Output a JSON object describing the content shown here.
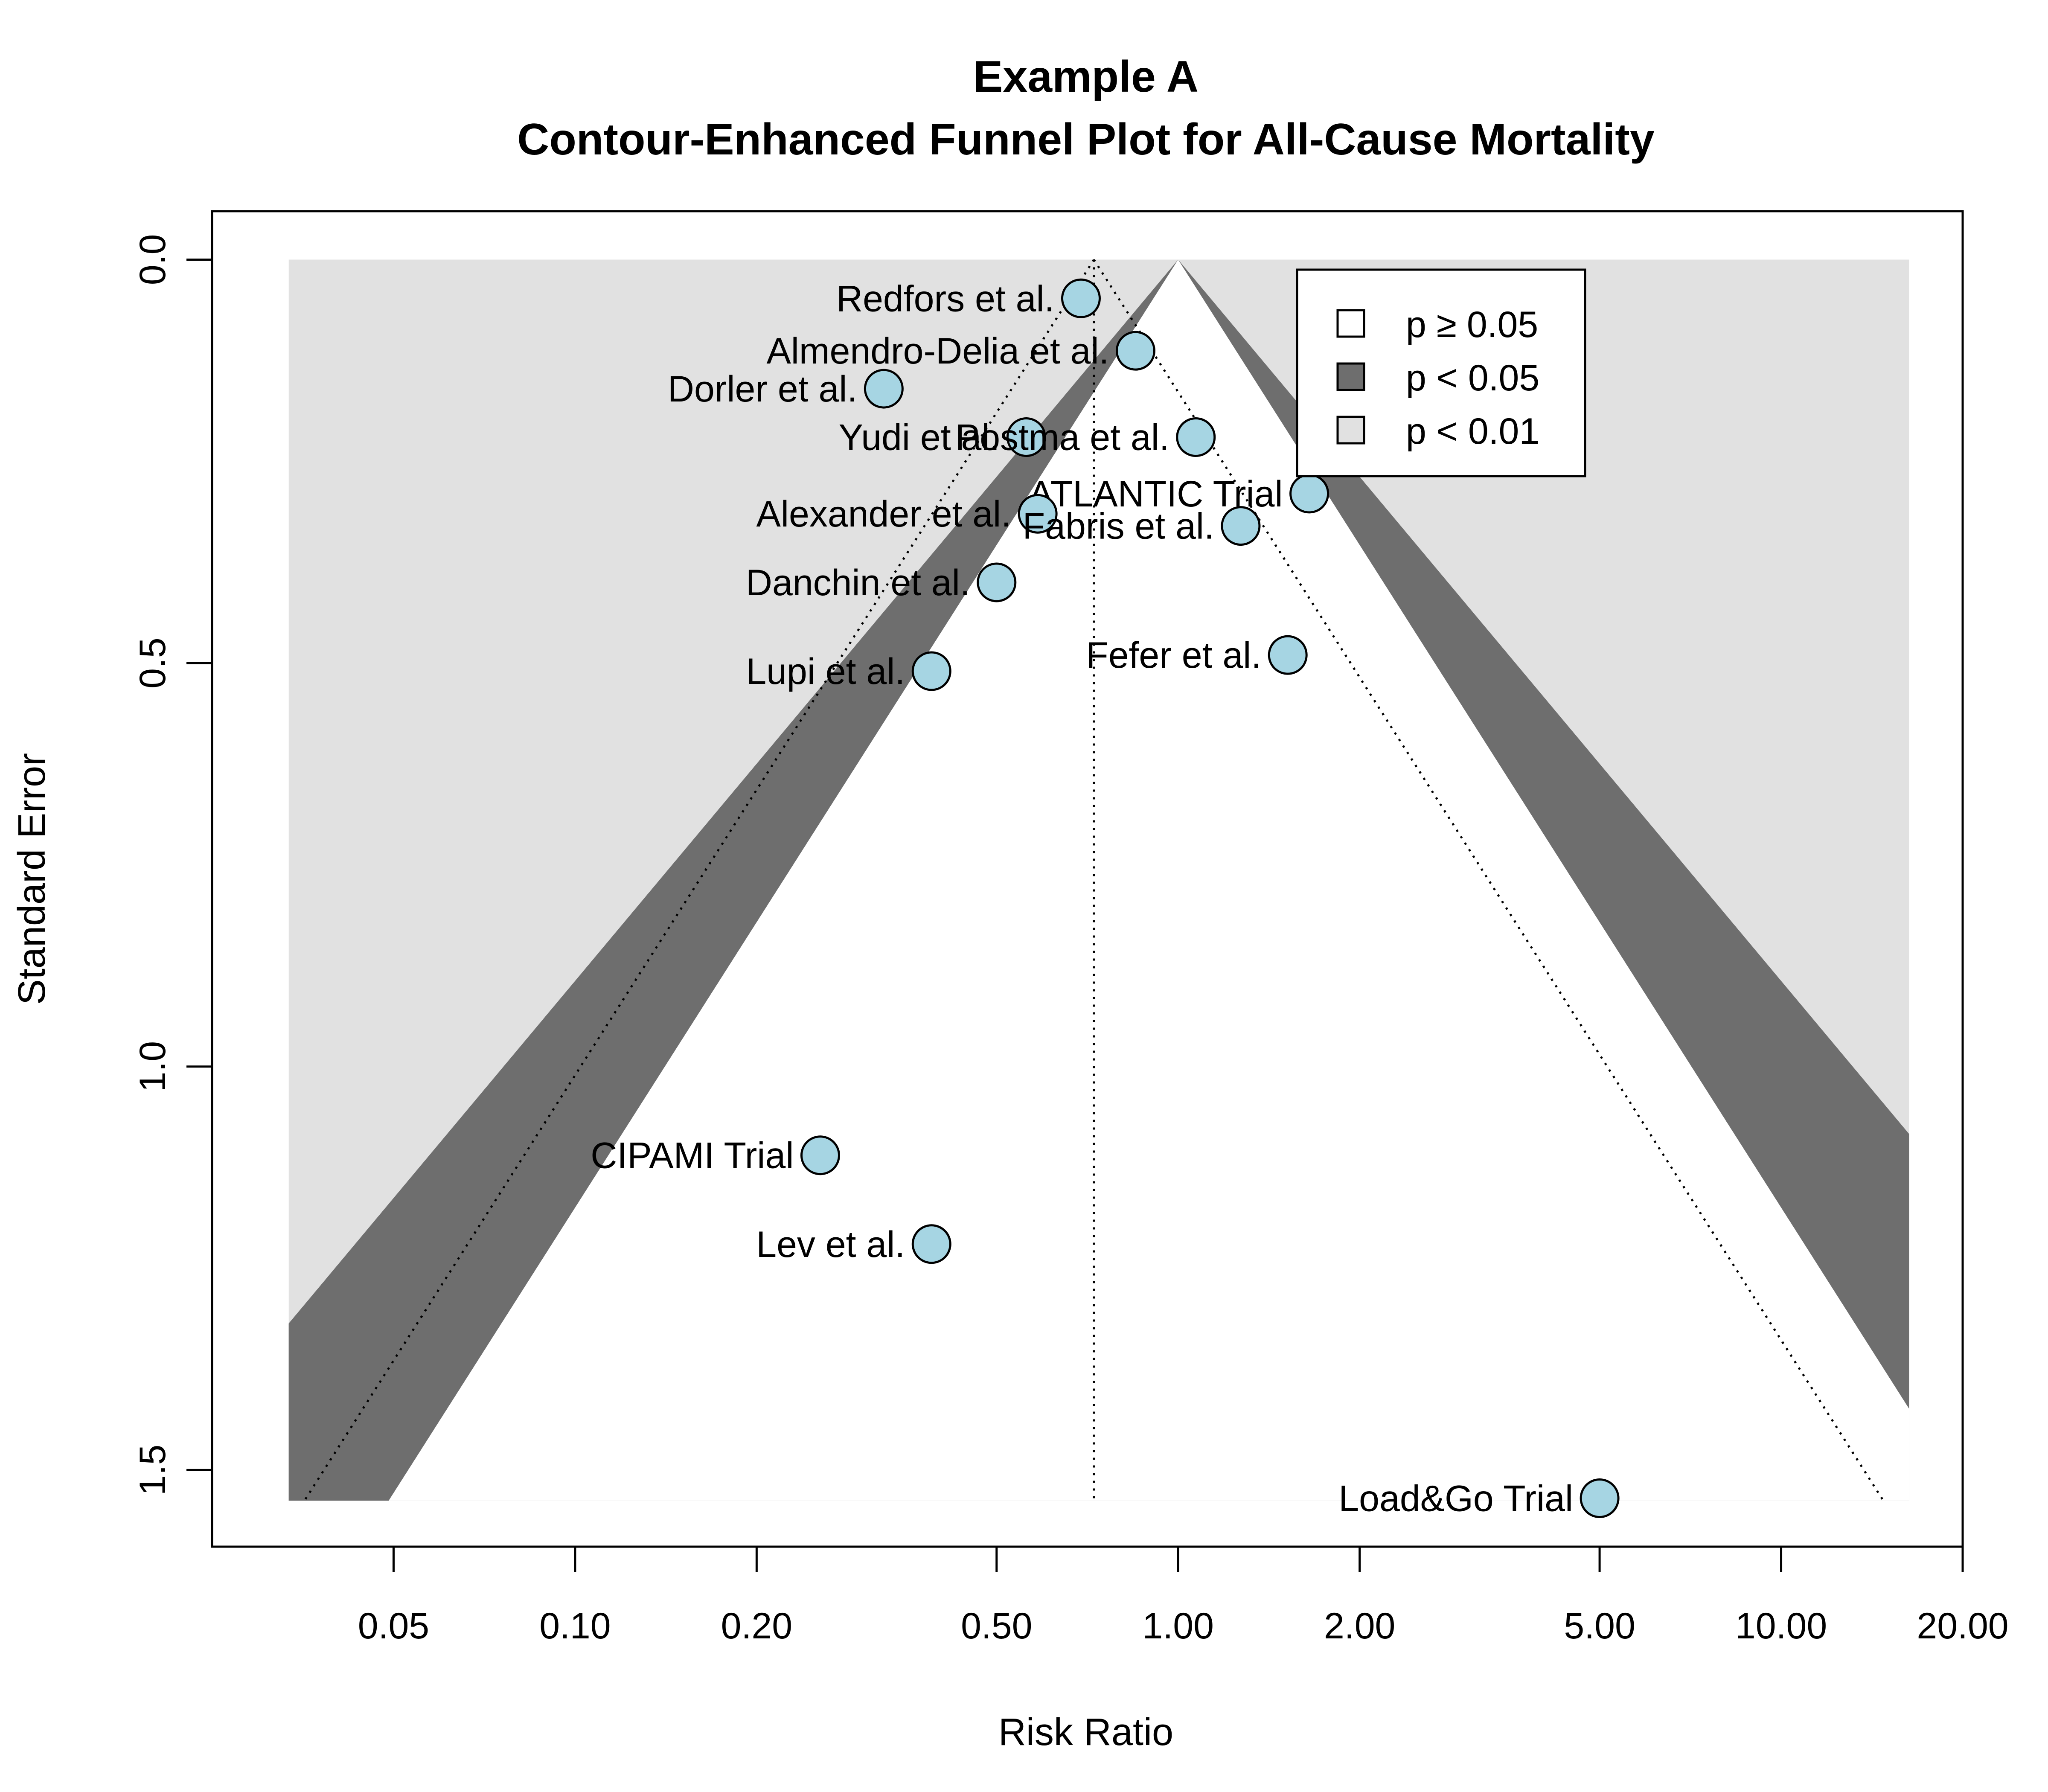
{
  "chart_data": {
    "type": "scatter",
    "title": "Example A",
    "subtitle": "Contour-Enhanced Funnel Plot for All-Cause Mortality",
    "xlabel": "Risk Ratio",
    "ylabel": "Standard Error",
    "x_scale": "log",
    "x_ticks": [
      0.05,
      0.1,
      0.2,
      0.5,
      1,
      2,
      5,
      10,
      20
    ],
    "x_tick_labels": [
      "0.05",
      "0.10",
      "0.20",
      "0.50",
      "1.00",
      "2.00",
      "5.00",
      "10.00",
      "20.00"
    ],
    "y_ticks": [
      0,
      0.5,
      1,
      1.5
    ],
    "y_tick_labels": [
      "0.0",
      "0.5",
      "1.0",
      "1.5"
    ],
    "xlim": [
      0.025,
      20
    ],
    "ylim": [
      1.595,
      -0.06
    ],
    "y_reversed": true,
    "grid": false,
    "reference_line_rr": 0.725,
    "null_effect_rr": 1.0,
    "contour_rr_range": [
      0.0335,
      16.3
    ],
    "contour_se_max": 1.538,
    "point_color": "#a6d5e3",
    "legend": {
      "placement": "top-right",
      "entries": [
        {
          "label": "p ≥ 0.05",
          "color": "#ffffff"
        },
        {
          "label": "p < 0.05",
          "color": "#6e6e6e"
        },
        {
          "label": "p < 0.01",
          "color": "#e1e1e1"
        }
      ]
    },
    "points": [
      {
        "label": "Redfors et al.",
        "rr": 0.69,
        "se": 0.048
      },
      {
        "label": "Almendro-Delia et al.",
        "rr": 0.85,
        "se": 0.113
      },
      {
        "label": "Dorler et al.",
        "rr": 0.325,
        "se": 0.16
      },
      {
        "label": "Yudi et al.",
        "rr": 0.56,
        "se": 0.22
      },
      {
        "label": "Postma et al.",
        "rr": 1.07,
        "se": 0.22
      },
      {
        "label": "ATLANTIC Trial",
        "rr": 1.65,
        "se": 0.29
      },
      {
        "label": "Alexander et al.",
        "rr": 0.585,
        "se": 0.315
      },
      {
        "label": "Fabris et al.",
        "rr": 1.27,
        "se": 0.33
      },
      {
        "label": "Danchin et al.",
        "rr": 0.5,
        "se": 0.4
      },
      {
        "label": "Fefer et al.",
        "rr": 1.52,
        "se": 0.49
      },
      {
        "label": "Lupi et al.",
        "rr": 0.39,
        "se": 0.51
      },
      {
        "label": "CIPAMI Trial",
        "rr": 0.255,
        "se": 1.11
      },
      {
        "label": "Lev et al.",
        "rr": 0.39,
        "se": 1.22
      },
      {
        "label": "Load&Go Trial",
        "rr": 5.0,
        "se": 1.535
      }
    ]
  }
}
